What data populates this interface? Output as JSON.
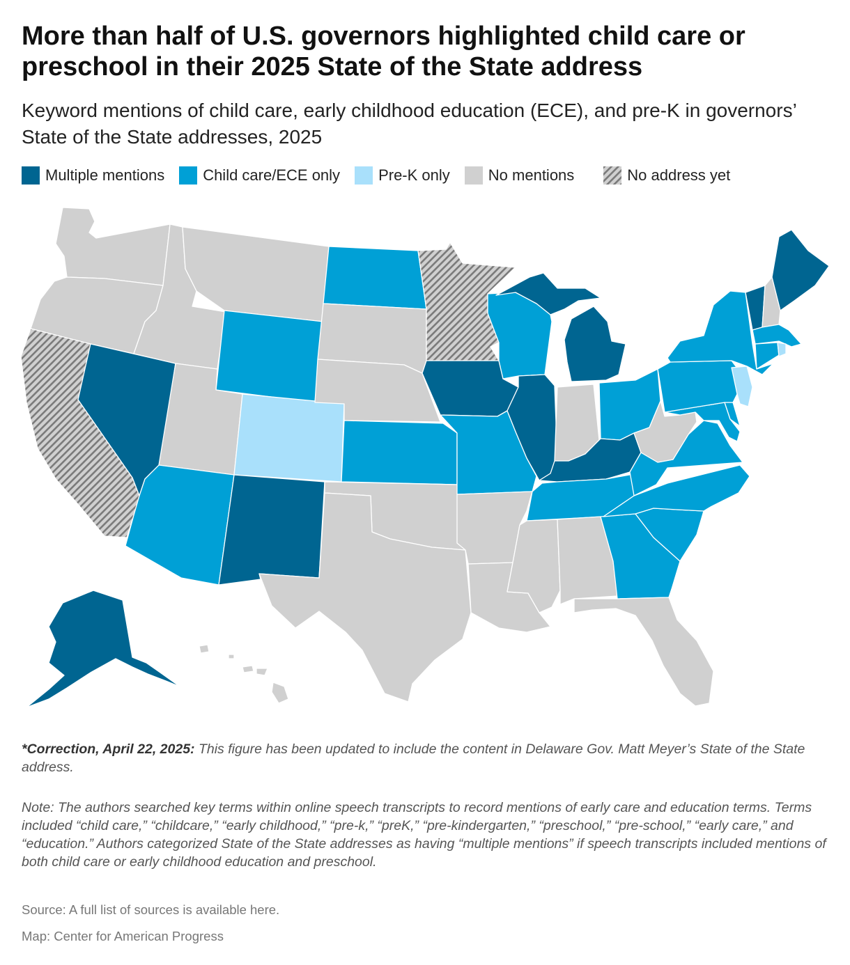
{
  "title": "More than half of U.S. governors highlighted child care or preschool in their 2025 State of the State address",
  "subtitle": "Keyword mentions of child care, early childhood education (ECE), and pre-K in governors’ State of the State addresses, 2025",
  "colors": {
    "multiple": "#006591",
    "childcare": "#00a0d6",
    "prek": "#a9e0fb",
    "none": "#d0d0d0",
    "hatch": "#7a7a7a"
  },
  "legend": [
    {
      "key": "multiple",
      "label": "Multiple mentions"
    },
    {
      "key": "childcare",
      "label": "Child care/ECE only"
    },
    {
      "key": "prek",
      "label": "Pre-K only"
    },
    {
      "key": "none",
      "label": "No mentions"
    },
    {
      "key": "noaddr",
      "label": "No address yet"
    }
  ],
  "states": {
    "multiple": [
      "AK",
      "NV",
      "NM",
      "IA",
      "IL",
      "KY",
      "MI",
      "VT",
      "ME"
    ],
    "childcare": [
      "AZ",
      "WY",
      "ND",
      "KS",
      "MO",
      "WI",
      "OH",
      "PA",
      "NY",
      "VA",
      "NC",
      "SC",
      "GA",
      "TN",
      "MD",
      "DE",
      "CT",
      "MA"
    ],
    "prek": [
      "CO",
      "NJ",
      "RI"
    ],
    "none": [
      "WA",
      "OR",
      "ID",
      "MT",
      "UT",
      "SD",
      "NE",
      "OK",
      "TX",
      "AR",
      "LA",
      "MS",
      "AL",
      "FL",
      "IN",
      "WV",
      "NH",
      "HI"
    ],
    "noaddr": [
      "CA",
      "MN"
    ]
  },
  "footer": {
    "correction_label": "*Correction, April 22, 2025:",
    "correction_text": " This figure has been updated to include the content in Delaware Gov. Matt Meyer’s State of the State address.",
    "note": "Note: The authors searched key terms within online speech transcripts to record mentions of early care and education terms. Terms included “child care,” “childcare,” “early childhood,” “pre-k,” “preK,” “pre-kindergarten,” “preschool,” “pre-school,” “early care,” and “education.” Authors categorized State of the State addresses as having “multiple mentions” if speech transcripts included mentions of both child care or early childhood education and preschool.",
    "source": "Source: A full list of sources is available here.",
    "credit": "Map: Center for American Progress"
  }
}
